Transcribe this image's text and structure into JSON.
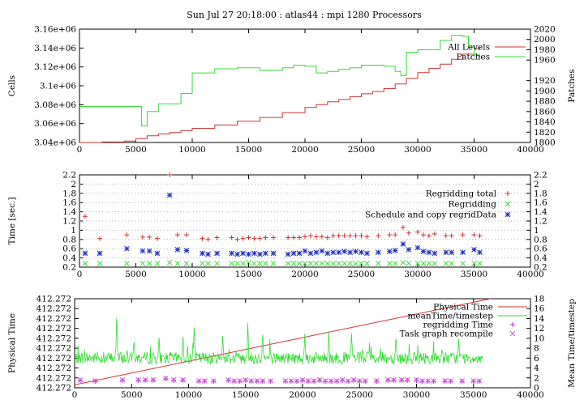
{
  "title": "Sun Jul 27 20:18:00 : atlas44 : mpi 1280 Processors",
  "colors": {
    "red": "#cc3333",
    "green": "#33dd33",
    "blue": "#1f2fbf",
    "purple": "#9933cc",
    "magenta": "#dd55dd",
    "grid": "#b0b0b0"
  },
  "chart_data": [
    {
      "type": "line",
      "title": "",
      "xlabel": "",
      "ylabel": "Cells",
      "y2label": "Patches",
      "xlim": [
        0,
        40000
      ],
      "ylim": [
        3040000,
        3160000
      ],
      "y2lim": [
        1800,
        2020
      ],
      "xticks": [
        "0",
        "5000",
        "10000",
        "15000",
        "20000",
        "25000",
        "30000",
        "35000",
        "40000"
      ],
      "yticks": [
        "3.04e+06",
        "3.06e+06",
        "3.08e+06",
        "3.1e+06",
        "3.12e+06",
        "3.14e+06",
        "3.16e+06"
      ],
      "y2ticks": [
        "1800",
        "1820",
        "1840",
        "1860",
        "1880",
        "1900",
        "1920",
        "1960",
        "1980",
        "2000",
        "2020"
      ],
      "y2tick_values": [
        1800,
        1820,
        1840,
        1860,
        1880,
        1900,
        1920,
        1960,
        1980,
        2000,
        2020
      ],
      "legend_position": "top-right",
      "series": [
        {
          "name": "All Levels",
          "axis": "left",
          "color": "red",
          "x": [
            0,
            2000,
            4000,
            5000,
            6000,
            7000,
            8000,
            9000,
            10000,
            12000,
            14000,
            16000,
            18000,
            20000,
            21000,
            22000,
            23000,
            24000,
            25000,
            26000,
            27000,
            28000,
            29000,
            30000,
            31000,
            32000,
            33000,
            34000,
            35000,
            35500
          ],
          "y": [
            3040000,
            3040500,
            3041500,
            3044000,
            3047000,
            3049000,
            3050500,
            3052500,
            3055000,
            3058500,
            3062500,
            3066500,
            3071500,
            3077000,
            3080000,
            3083000,
            3085500,
            3088500,
            3091500,
            3094000,
            3097000,
            3102000,
            3108000,
            3114000,
            3118500,
            3123000,
            3128000,
            3133500,
            3139000,
            3140000
          ]
        },
        {
          "name": "Patches",
          "axis": "right",
          "color": "green",
          "x": [
            0,
            4000,
            5500,
            6000,
            7000,
            8000,
            9000,
            10000,
            12000,
            14000,
            16000,
            18000,
            19000,
            20000,
            21000,
            22000,
            23000,
            24000,
            25000,
            26000,
            27000,
            28000,
            28500,
            29000,
            30000,
            32000,
            33000,
            34000,
            34500,
            35000,
            35500
          ],
          "y": [
            1870,
            1870,
            1832,
            1860,
            1875,
            1875,
            1895,
            1935,
            1943,
            1945,
            1940,
            1945,
            1950,
            1948,
            1935,
            1938,
            1942,
            1945,
            1950,
            1950,
            1948,
            1938,
            1930,
            1975,
            1980,
            1998,
            2008,
            2006,
            1985,
            1970,
            1965
          ]
        }
      ]
    },
    {
      "type": "scatter",
      "title": "",
      "xlabel": "",
      "ylabel": "Time [sec.]",
      "xlim": [
        0,
        40000
      ],
      "ylim": [
        0.2,
        2.2
      ],
      "y2lim": [
        0.2,
        2.2
      ],
      "xticks": [
        "0",
        "5000",
        "10000",
        "15000",
        "20000",
        "25000",
        "30000",
        "35000",
        "40000"
      ],
      "yticks": [
        "0.2",
        "0.4",
        "0.6",
        "0.8",
        "1",
        "1.2",
        "1.4",
        "1.6",
        "1.8",
        "2",
        "2.2"
      ],
      "legend_position": "top-right",
      "series": [
        {
          "name": "Regridding total",
          "marker": "+",
          "color": "red",
          "x": [
            500,
            1800,
            4200,
            5600,
            6200,
            6900,
            8000,
            8700,
            9500,
            10900,
            11400,
            12200,
            13500,
            14000,
            14500,
            15000,
            15500,
            16000,
            16500,
            17200,
            18500,
            19000,
            19500,
            20000,
            20500,
            21000,
            21500,
            22000,
            22500,
            23000,
            23500,
            24000,
            24500,
            25000,
            25500,
            26500,
            27500,
            28000,
            28700,
            29200,
            30000,
            30500,
            31000,
            31500,
            32500,
            33000,
            34000,
            35000,
            35500
          ],
          "y": [
            1.3,
            0.82,
            0.9,
            0.85,
            0.85,
            0.82,
            2.2,
            0.9,
            0.9,
            0.82,
            0.8,
            0.84,
            0.84,
            0.8,
            0.82,
            0.84,
            0.82,
            0.82,
            0.84,
            0.84,
            0.84,
            0.84,
            0.84,
            0.86,
            0.88,
            0.86,
            0.86,
            0.84,
            0.88,
            0.88,
            0.88,
            0.88,
            0.88,
            0.88,
            0.86,
            0.88,
            0.9,
            0.9,
            1.06,
            0.94,
            0.96,
            0.9,
            0.88,
            0.92,
            0.88,
            0.88,
            0.9,
            0.9,
            0.88
          ]
        },
        {
          "name": "Regridding",
          "marker": "x",
          "color": "green",
          "x": [
            500,
            1800,
            4200,
            5600,
            6200,
            6900,
            8000,
            8700,
            9500,
            10900,
            11400,
            12200,
            13500,
            14000,
            14500,
            15000,
            15500,
            16000,
            16500,
            17200,
            18500,
            19000,
            19500,
            20000,
            20500,
            21000,
            21500,
            22000,
            22500,
            23000,
            23500,
            24000,
            24500,
            25000,
            25500,
            26500,
            27500,
            28000,
            28700,
            29200,
            30000,
            30500,
            31000,
            31500,
            32500,
            33000,
            34000,
            35000,
            35500
          ],
          "y": [
            0.28,
            0.28,
            0.28,
            0.28,
            0.28,
            0.28,
            0.3,
            0.28,
            0.28,
            0.28,
            0.28,
            0.28,
            0.28,
            0.28,
            0.28,
            0.3,
            0.28,
            0.28,
            0.28,
            0.28,
            0.28,
            0.28,
            0.28,
            0.28,
            0.28,
            0.28,
            0.28,
            0.28,
            0.28,
            0.28,
            0.28,
            0.28,
            0.28,
            0.28,
            0.28,
            0.28,
            0.28,
            0.28,
            0.3,
            0.28,
            0.28,
            0.28,
            0.28,
            0.28,
            0.28,
            0.28,
            0.28,
            0.28,
            0.28
          ]
        },
        {
          "name": "Schedule and copy regridData",
          "marker": "*",
          "color": "blue",
          "x": [
            500,
            1800,
            4200,
            5600,
            6200,
            6900,
            8000,
            8700,
            9500,
            10900,
            11400,
            12200,
            13500,
            14000,
            14500,
            15000,
            15500,
            16000,
            16500,
            17200,
            18500,
            19000,
            19500,
            20000,
            20500,
            21000,
            21500,
            22000,
            22500,
            23000,
            23500,
            24000,
            24500,
            25000,
            25500,
            26500,
            27500,
            28000,
            28700,
            29200,
            30000,
            30500,
            31000,
            31500,
            32500,
            33000,
            34000,
            35000,
            35500
          ],
          "y": [
            0.5,
            0.5,
            0.6,
            0.55,
            0.55,
            0.5,
            1.76,
            0.58,
            0.56,
            0.5,
            0.48,
            0.5,
            0.5,
            0.48,
            0.5,
            0.48,
            0.5,
            0.48,
            0.5,
            0.5,
            0.48,
            0.5,
            0.5,
            0.55,
            0.5,
            0.52,
            0.55,
            0.5,
            0.52,
            0.52,
            0.54,
            0.52,
            0.54,
            0.52,
            0.5,
            0.52,
            0.54,
            0.56,
            0.7,
            0.58,
            0.62,
            0.54,
            0.52,
            0.5,
            0.52,
            0.52,
            0.52,
            0.58,
            0.52
          ]
        }
      ]
    },
    {
      "type": "line",
      "title": "",
      "xlabel": "",
      "ylabel": "Physical Time",
      "y2label": "Mean Time/timestep",
      "xlim": [
        0,
        40000
      ],
      "ylim": [
        0,
        9
      ],
      "y2lim": [
        0,
        18
      ],
      "xticks": [
        "0",
        "5000",
        "10000",
        "15000",
        "20000",
        "25000",
        "30000",
        "35000",
        "40000"
      ],
      "yticks": [
        "412.272",
        "412.272",
        "412.272",
        "412.272",
        "412.272",
        "412.272",
        "412.272",
        "412.272",
        "412.272",
        "412.272"
      ],
      "y2ticks": [
        "0",
        "2",
        "4",
        "6",
        "8",
        "10",
        "12",
        "14",
        "16",
        "18"
      ],
      "legend_position": "top-right",
      "series": [
        {
          "name": "Physical Time",
          "axis": "left",
          "color": "red",
          "x": [
            0,
            36500
          ],
          "y": [
            0.3,
            9.0
          ]
        },
        {
          "name": "meanTime/timestep",
          "axis": "right",
          "color": "green",
          "baseline": 6.0,
          "noise": 1.2,
          "x_range": [
            0,
            35800
          ],
          "peaks": [
            [
              3700,
              16
            ],
            [
              7400,
              11
            ],
            [
              5200,
              10
            ],
            [
              9500,
              11
            ],
            [
              10500,
              13.5
            ],
            [
              13000,
              11
            ],
            [
              15200,
              14
            ],
            [
              16500,
              12
            ],
            [
              20200,
              11
            ],
            [
              22300,
              11.5
            ],
            [
              24300,
              11.5
            ],
            [
              28200,
              11
            ],
            [
              33700,
              10
            ]
          ]
        },
        {
          "name": "regridding Time",
          "marker": "+",
          "axis": "right",
          "color": "purple",
          "x": [
            500,
            1800,
            4200,
            5600,
            6200,
            6900,
            8000,
            8700,
            9500,
            10900,
            11400,
            12200,
            13500,
            14000,
            14500,
            15000,
            15500,
            16000,
            16500,
            17200,
            18500,
            19000,
            19500,
            20000,
            20500,
            21000,
            21500,
            22000,
            22500,
            23000,
            23500,
            24000,
            24500,
            25000,
            25500,
            26500,
            27500,
            28000,
            28700,
            29200,
            30000,
            30500,
            31000,
            31500,
            32500,
            33000,
            34000,
            35000,
            35500
          ],
          "y": [
            1.5,
            1.3,
            1.5,
            1.5,
            1.5,
            1.5,
            1.8,
            1.5,
            1.5,
            1.3,
            1.3,
            1.3,
            1.5,
            1.3,
            1.3,
            1.5,
            1.3,
            1.3,
            1.3,
            1.3,
            1.3,
            1.3,
            1.3,
            1.5,
            1.3,
            1.3,
            1.5,
            1.3,
            1.3,
            1.3,
            1.5,
            1.3,
            1.5,
            1.3,
            1.3,
            1.3,
            1.5,
            1.5,
            1.5,
            1.5,
            1.5,
            1.3,
            1.3,
            1.3,
            1.3,
            1.3,
            1.3,
            1.3,
            1.3
          ]
        },
        {
          "name": "Task graph recompile",
          "marker": "x",
          "axis": "right",
          "color": "magenta",
          "x": [
            500,
            1800,
            4200,
            5600,
            6200,
            6900,
            8000,
            8700,
            9500,
            10900,
            11400,
            12200,
            13500,
            14000,
            14500,
            15000,
            15500,
            16000,
            16500,
            17200,
            18500,
            19000,
            19500,
            20000,
            20500,
            21000,
            21500,
            22000,
            22500,
            23000,
            23500,
            24000,
            24500,
            25000,
            25500,
            26500,
            27500,
            28000,
            28700,
            29200,
            30000,
            30500,
            31000,
            31500,
            32500,
            33000,
            34000,
            35000,
            35500
          ],
          "y": [
            1.6,
            1.4,
            1.6,
            1.6,
            1.6,
            1.6,
            1.9,
            1.6,
            1.6,
            1.4,
            1.4,
            1.4,
            1.6,
            1.4,
            1.4,
            1.6,
            1.4,
            1.4,
            1.4,
            1.4,
            1.4,
            1.4,
            1.4,
            1.6,
            1.4,
            1.4,
            1.6,
            1.4,
            1.4,
            1.4,
            1.6,
            1.4,
            1.6,
            1.4,
            1.4,
            1.4,
            1.6,
            1.6,
            1.6,
            1.6,
            1.6,
            1.4,
            1.4,
            1.4,
            1.4,
            1.4,
            1.4,
            1.4,
            1.4
          ]
        }
      ]
    }
  ]
}
